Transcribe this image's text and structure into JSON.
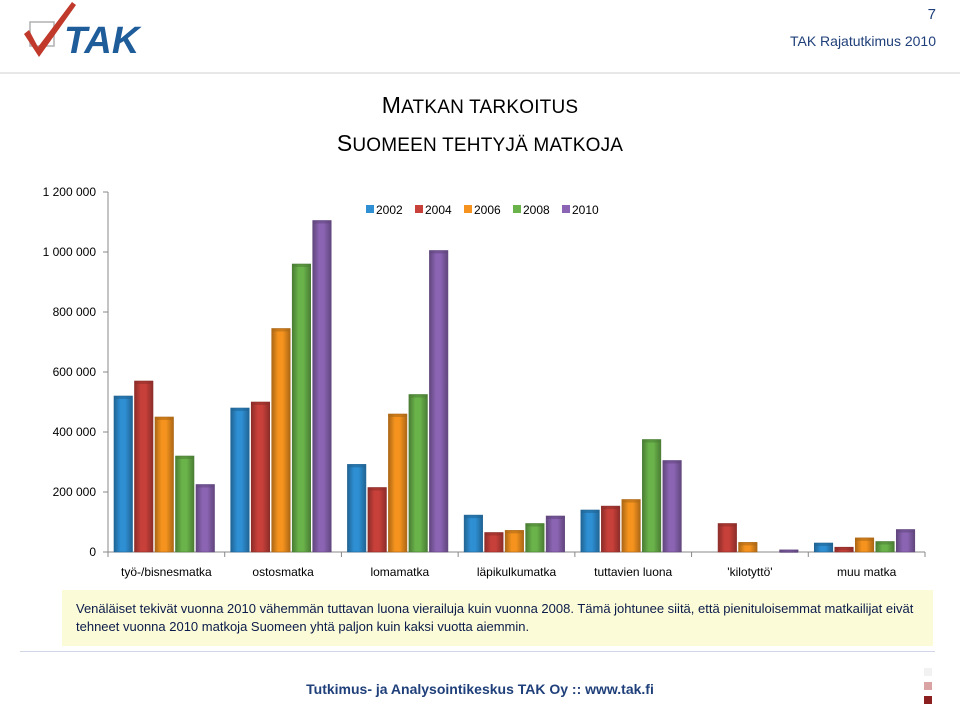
{
  "header": {
    "logo_text": "TAK",
    "page_number": "7",
    "report_name": "TAK Rajatutkimus 2010"
  },
  "title": {
    "line1_first": "M",
    "line1_rest": "ATKAN TARKOITUS",
    "line2_first": "S",
    "line2_rest": "UOMEEN TEHTYJÄ MATKOJA"
  },
  "colors": {
    "2002": "#2e8fd3",
    "2004": "#c8403a",
    "2006": "#f5931e",
    "2008": "#6ab34a",
    "2010": "#8b64b3"
  },
  "chart_data": {
    "type": "bar",
    "title": "",
    "xlabel": "",
    "ylabel": "",
    "ylim": [
      0,
      1200000
    ],
    "yticks": [
      0,
      200000,
      400000,
      600000,
      800000,
      1000000,
      1200000
    ],
    "ytick_labels": [
      "0",
      "200 000",
      "400 000",
      "600 000",
      "800 000",
      "1 000 000",
      "1 200 000"
    ],
    "legend_position": "top",
    "categories": [
      "työ-/bisnesmatka",
      "ostosmatka",
      "lomamatka",
      "läpikulkumatka",
      "tuttavien luona",
      "'kilotyttö'",
      "muu matka"
    ],
    "series": [
      {
        "name": "2002",
        "values": [
          520000,
          480000,
          292000,
          123000,
          140000,
          null,
          30000
        ]
      },
      {
        "name": "2004",
        "values": [
          570000,
          500000,
          215000,
          65000,
          153000,
          95000,
          16000
        ]
      },
      {
        "name": "2006",
        "values": [
          450000,
          745000,
          460000,
          72000,
          175000,
          32000,
          47000
        ]
      },
      {
        "name": "2008",
        "values": [
          320000,
          960000,
          525000,
          95000,
          375000,
          null,
          35000
        ]
      },
      {
        "name": "2010",
        "values": [
          225000,
          1105000,
          1005000,
          120000,
          305000,
          7000,
          75000
        ]
      }
    ]
  },
  "note": "Venäläiset tekivät vuonna 2010 vähemmän tuttavan luona vierailuja kuin vuonna 2008. Tämä johtunee siitä, että pienituloisemmat matkailijat eivät tehneet vuonna 2010 matkoja Suomeen yhtä paljon kuin kaksi vuotta aiemmin.",
  "footer": "Tutkimus- ja Analysointikeskus TAK Oy  ::  www.tak.fi"
}
